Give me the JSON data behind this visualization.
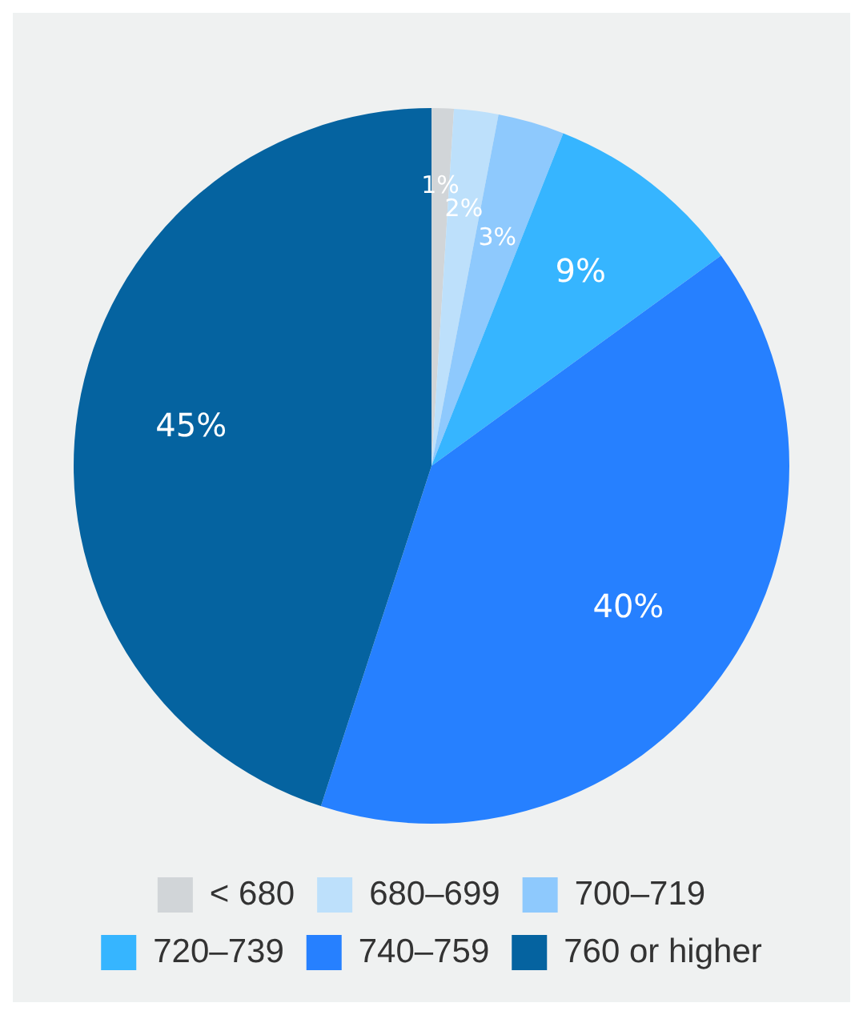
{
  "chart_data": {
    "type": "pie",
    "categories": [
      "< 680",
      "680–699",
      "700–719",
      "720–739",
      "740–759",
      "760 or higher"
    ],
    "values": [
      1,
      2,
      3,
      9,
      40,
      45
    ],
    "colors": [
      "#d1d5d8",
      "#bde0fb",
      "#8ec9fd",
      "#36b5ff",
      "#2680ff",
      "#0563a0"
    ],
    "value_labels": [
      "1%",
      "2%",
      "3%",
      "9%",
      "40%",
      "45%"
    ],
    "legend": "bottom"
  }
}
